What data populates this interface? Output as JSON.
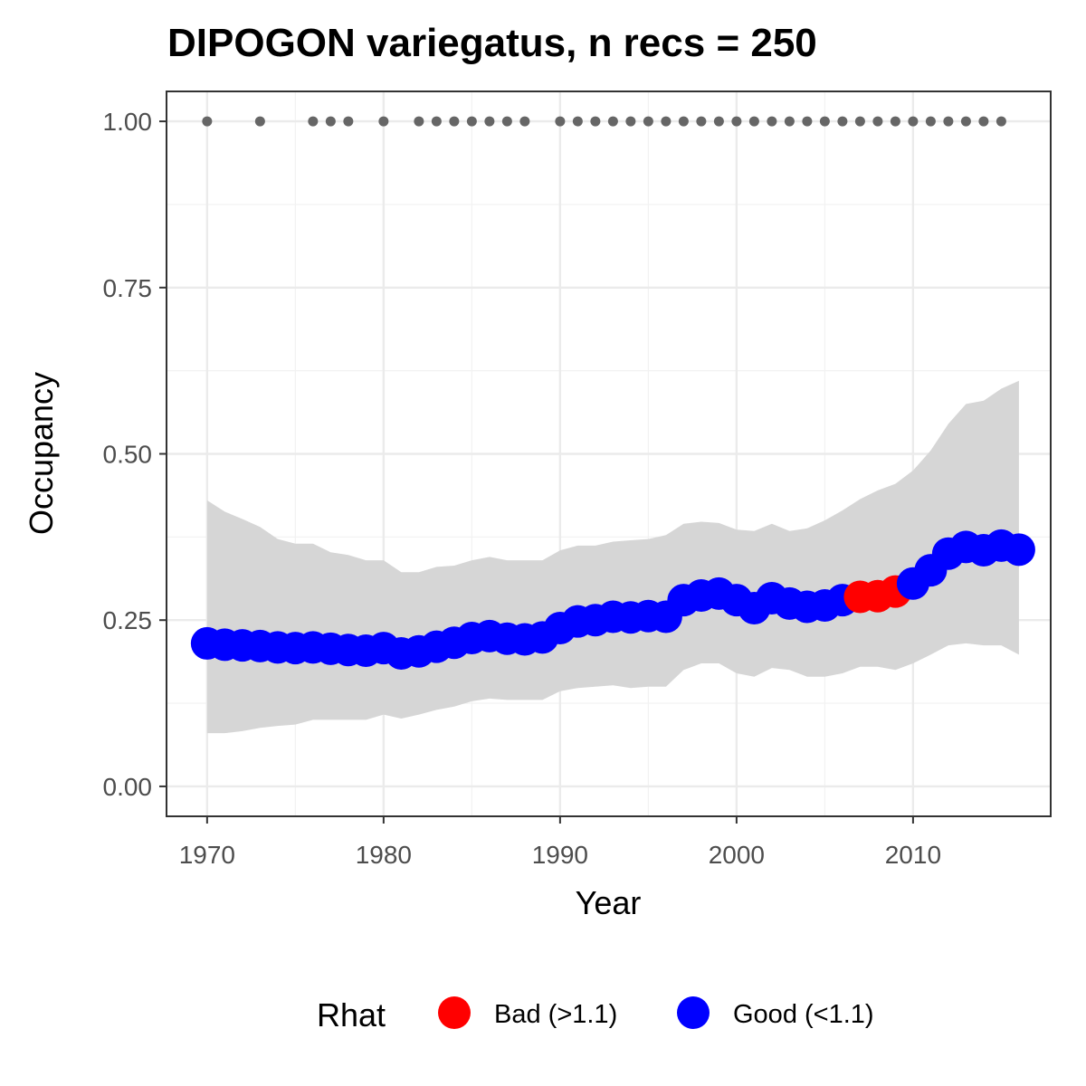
{
  "chart_data": {
    "type": "line",
    "title": "DIPOGON variegatus, n recs = 250",
    "xlabel": "Year",
    "ylabel": "Occupancy",
    "xlim": [
      1967.7,
      2017.8
    ],
    "ylim": [
      -0.045,
      1.045
    ],
    "x_ticks": [
      1970,
      1980,
      1990,
      2000,
      2010
    ],
    "x_tick_labels": [
      "1970",
      "1980",
      "1990",
      "2000",
      "2010"
    ],
    "y_ticks": [
      0,
      0.25,
      0.5,
      0.75,
      1.0
    ],
    "y_tick_labels": [
      "0.00",
      "0.25",
      "0.50",
      "0.75",
      "1.00"
    ],
    "grid": true,
    "legend": {
      "title": "Rhat",
      "position": "bottom",
      "entries": [
        {
          "label": "Bad (>1.1)",
          "color": "#ff0000"
        },
        {
          "label": "Good (<1.1)",
          "color": "#0000ff"
        }
      ]
    },
    "colors": {
      "bad": "#ff0000",
      "good": "#0000ff",
      "ribbon": "#d6d6d6",
      "record_points": "#666666"
    },
    "x": [
      1970,
      1971,
      1972,
      1973,
      1974,
      1975,
      1976,
      1977,
      1978,
      1979,
      1980,
      1981,
      1982,
      1983,
      1984,
      1985,
      1986,
      1987,
      1988,
      1989,
      1990,
      1991,
      1992,
      1993,
      1994,
      1995,
      1996,
      1997,
      1998,
      1999,
      2000,
      2001,
      2002,
      2003,
      2004,
      2005,
      2006,
      2007,
      2008,
      2009,
      2010,
      2011,
      2012,
      2013,
      2014,
      2015,
      2016
    ],
    "series": [
      {
        "values": [
          0.215,
          0.213,
          0.212,
          0.211,
          0.209,
          0.208,
          0.209,
          0.207,
          0.205,
          0.204,
          0.208,
          0.2,
          0.203,
          0.21,
          0.216,
          0.223,
          0.226,
          0.222,
          0.221,
          0.224,
          0.238,
          0.248,
          0.25,
          0.255,
          0.254,
          0.256,
          0.255,
          0.28,
          0.287,
          0.29,
          0.28,
          0.268,
          0.283,
          0.275,
          0.27,
          0.272,
          0.28,
          0.285,
          0.286,
          0.293,
          0.305,
          0.325,
          0.35,
          0.36,
          0.355,
          0.362,
          0.356
        ],
        "rhat": [
          "Good",
          "Good",
          "Good",
          "Good",
          "Good",
          "Good",
          "Good",
          "Good",
          "Good",
          "Good",
          "Good",
          "Good",
          "Good",
          "Good",
          "Good",
          "Good",
          "Good",
          "Good",
          "Good",
          "Good",
          "Good",
          "Good",
          "Good",
          "Good",
          "Good",
          "Good",
          "Good",
          "Good",
          "Good",
          "Good",
          "Good",
          "Good",
          "Good",
          "Good",
          "Good",
          "Good",
          "Good",
          "Bad",
          "Bad",
          "Bad",
          "Good",
          "Good",
          "Good",
          "Good",
          "Good",
          "Good",
          "Good"
        ],
        "upper": [
          0.43,
          0.413,
          0.402,
          0.39,
          0.372,
          0.365,
          0.365,
          0.352,
          0.348,
          0.34,
          0.34,
          0.322,
          0.322,
          0.33,
          0.332,
          0.34,
          0.345,
          0.34,
          0.34,
          0.34,
          0.355,
          0.362,
          0.362,
          0.368,
          0.37,
          0.372,
          0.378,
          0.395,
          0.398,
          0.396,
          0.386,
          0.384,
          0.395,
          0.384,
          0.388,
          0.4,
          0.415,
          0.432,
          0.445,
          0.455,
          0.475,
          0.505,
          0.545,
          0.575,
          0.58,
          0.598,
          0.61
        ],
        "lower": [
          0.08,
          0.08,
          0.083,
          0.088,
          0.091,
          0.093,
          0.1,
          0.1,
          0.1,
          0.1,
          0.108,
          0.102,
          0.108,
          0.115,
          0.12,
          0.128,
          0.132,
          0.13,
          0.13,
          0.13,
          0.143,
          0.148,
          0.15,
          0.152,
          0.148,
          0.15,
          0.15,
          0.175,
          0.185,
          0.185,
          0.17,
          0.165,
          0.178,
          0.175,
          0.165,
          0.165,
          0.17,
          0.18,
          0.18,
          0.175,
          0.185,
          0.198,
          0.212,
          0.215,
          0.212,
          0.212,
          0.198
        ]
      }
    ],
    "record_years": [
      1970,
      1973,
      1976,
      1977,
      1978,
      1980,
      1982,
      1983,
      1984,
      1985,
      1986,
      1987,
      1988,
      1990,
      1991,
      1992,
      1993,
      1994,
      1995,
      1996,
      1997,
      1998,
      1999,
      2000,
      2001,
      2002,
      2003,
      2004,
      2005,
      2006,
      2007,
      2008,
      2009,
      2010,
      2011,
      2012,
      2013,
      2014,
      2015
    ],
    "record_value": 1.0
  }
}
